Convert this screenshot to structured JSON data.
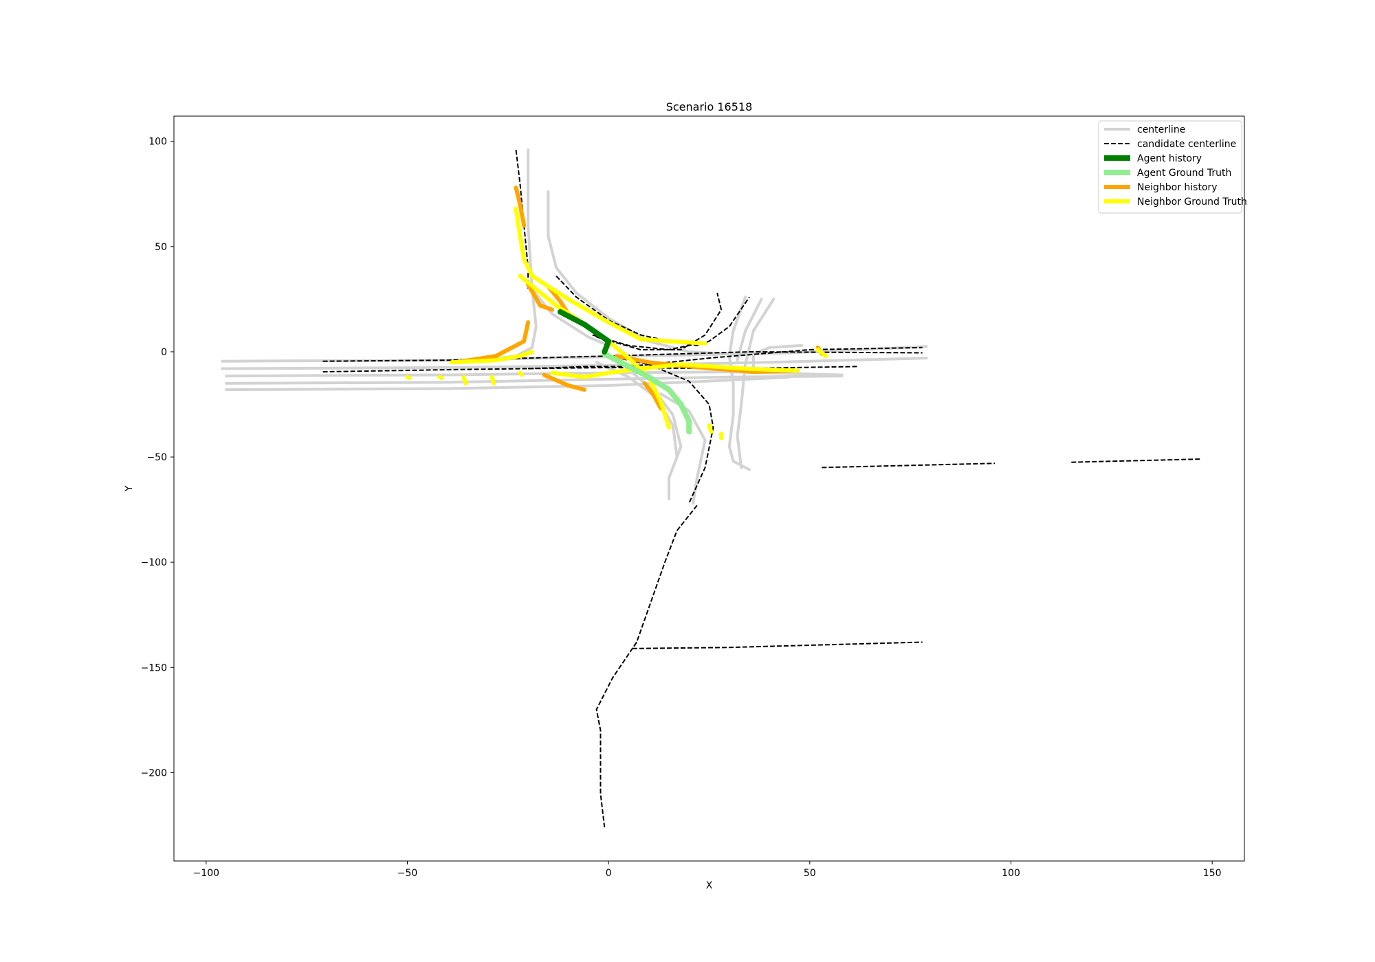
{
  "chart_data": {
    "type": "line",
    "title": "Scenario 16518",
    "xlabel": "X",
    "ylabel": "Y",
    "xlim": [
      -108,
      158
    ],
    "ylim": [
      -242,
      112
    ],
    "xticks": [
      -100,
      -50,
      0,
      50,
      100,
      150
    ],
    "yticks": [
      100,
      50,
      0,
      -50,
      -100,
      -150,
      -200
    ],
    "grid": false,
    "legend_position": "top-right",
    "legend": [
      {
        "label": "centerline",
        "color": "#d3d3d3",
        "style": "solid",
        "width": 4
      },
      {
        "label": "candidate centerline",
        "color": "#000000",
        "style": "dashed",
        "width": 2
      },
      {
        "label": "Agent history",
        "color": "#008000",
        "style": "solid",
        "width": 8
      },
      {
        "label": "Agent Ground Truth",
        "color": "#90ee90",
        "style": "solid",
        "width": 8
      },
      {
        "label": "Neighbor history",
        "color": "#ffa500",
        "style": "solid",
        "width": 6
      },
      {
        "label": "Neighbor Ground Truth",
        "color": "#ffff00",
        "style": "solid",
        "width": 6
      }
    ],
    "series": [
      {
        "kind": "centerline",
        "points": [
          [
            -96,
            -4.5
          ],
          [
            -40,
            -4
          ],
          [
            20,
            -1.5
          ],
          [
            45,
            -0.5
          ],
          [
            79,
            2.5
          ]
        ]
      },
      {
        "kind": "centerline",
        "points": [
          [
            -96,
            -8
          ],
          [
            -40,
            -7.5
          ],
          [
            0,
            -6.5
          ],
          [
            40,
            -5
          ],
          [
            79,
            -3
          ]
        ]
      },
      {
        "kind": "centerline",
        "points": [
          [
            -95,
            -11.5
          ],
          [
            -40,
            -11
          ],
          [
            0,
            -10
          ],
          [
            30,
            -9.5
          ],
          [
            58,
            -11
          ]
        ]
      },
      {
        "kind": "centerline",
        "points": [
          [
            -95,
            -15
          ],
          [
            -40,
            -14.5
          ],
          [
            0,
            -13
          ],
          [
            30,
            -12
          ],
          [
            58,
            -11.5
          ]
        ]
      },
      {
        "kind": "centerline",
        "points": [
          [
            -95,
            -18
          ],
          [
            -40,
            -17.5
          ],
          [
            0,
            -16
          ],
          [
            30,
            -13.5
          ],
          [
            45,
            -12
          ]
        ]
      },
      {
        "kind": "centerline",
        "points": [
          [
            -20,
            96
          ],
          [
            -20,
            60
          ],
          [
            -19,
            30
          ],
          [
            -18,
            12
          ],
          [
            -19,
            2
          ],
          [
            -23,
            -2
          ],
          [
            -36,
            -5
          ]
        ]
      },
      {
        "kind": "centerline",
        "points": [
          [
            -15,
            76
          ],
          [
            -15,
            55
          ],
          [
            -13,
            40
          ],
          [
            -8,
            28
          ],
          [
            0,
            16
          ],
          [
            10,
            5
          ],
          [
            20,
            0
          ],
          [
            30,
            -1
          ]
        ]
      },
      {
        "kind": "centerline",
        "points": [
          [
            -20,
            32
          ],
          [
            -14,
            18
          ],
          [
            -5,
            7
          ],
          [
            0,
            3
          ]
        ]
      },
      {
        "kind": "centerline",
        "points": [
          [
            -3,
            -5
          ],
          [
            5,
            -12
          ],
          [
            12,
            -22
          ],
          [
            16,
            -35
          ],
          [
            17,
            -50
          ]
        ]
      },
      {
        "kind": "centerline",
        "points": [
          [
            6,
            -10
          ],
          [
            12,
            -20
          ],
          [
            16,
            -30
          ],
          [
            18,
            -45
          ],
          [
            15,
            -60
          ],
          [
            15,
            -70
          ]
        ]
      },
      {
        "kind": "centerline",
        "points": [
          [
            13,
            -20
          ],
          [
            20,
            -28
          ],
          [
            24,
            -42
          ],
          [
            22,
            -60
          ],
          [
            21,
            -72
          ]
        ]
      },
      {
        "kind": "centerline",
        "points": [
          [
            30,
            -2
          ],
          [
            31,
            -15
          ],
          [
            31,
            -30
          ],
          [
            30,
            -45
          ],
          [
            31,
            -52
          ],
          [
            35,
            -56
          ]
        ]
      },
      {
        "kind": "centerline",
        "points": [
          [
            34,
            -5
          ],
          [
            33,
            -25
          ],
          [
            32,
            -40
          ],
          [
            33,
            -55
          ]
        ]
      },
      {
        "kind": "centerline",
        "points": [
          [
            30,
            -2
          ],
          [
            31,
            10
          ],
          [
            34,
            26
          ]
        ]
      },
      {
        "kind": "centerline",
        "points": [
          [
            32,
            -4
          ],
          [
            34,
            10
          ],
          [
            38,
            25
          ]
        ]
      },
      {
        "kind": "centerline",
        "points": [
          [
            34,
            -6
          ],
          [
            36,
            10
          ],
          [
            41,
            25
          ]
        ]
      },
      {
        "kind": "centerline",
        "points": [
          [
            36,
            -7
          ],
          [
            36,
            -1
          ],
          [
            40,
            2
          ],
          [
            48,
            3
          ]
        ]
      },
      {
        "kind": "candidate",
        "points": [
          [
            -71,
            -4.5
          ],
          [
            -40,
            -4
          ],
          [
            0,
            -2
          ],
          [
            35,
            0
          ],
          [
            78,
            -0.5
          ]
        ]
      },
      {
        "kind": "candidate",
        "points": [
          [
            -71,
            -9.5
          ],
          [
            -40,
            -8.5
          ],
          [
            0,
            -7.5
          ],
          [
            30,
            -8
          ],
          [
            62,
            -7
          ]
        ]
      },
      {
        "kind": "candidate",
        "points": [
          [
            -23,
            96
          ],
          [
            -22,
            80
          ],
          [
            -21,
            60
          ],
          [
            -20,
            40
          ],
          [
            -20,
            30
          ]
        ]
      },
      {
        "kind": "candidate",
        "points": [
          [
            -13,
            36
          ],
          [
            -8,
            26
          ],
          [
            0,
            15
          ],
          [
            8,
            8
          ],
          [
            15,
            5
          ],
          [
            22,
            3
          ],
          [
            25,
            5
          ]
        ]
      },
      {
        "kind": "candidate",
        "points": [
          [
            -4,
            8
          ],
          [
            5,
            3
          ],
          [
            15,
            1
          ],
          [
            25,
            5
          ],
          [
            30,
            12
          ],
          [
            35,
            26
          ]
        ]
      },
      {
        "kind": "candidate",
        "points": [
          [
            -3,
            7
          ],
          [
            8,
            1
          ],
          [
            18,
            1
          ],
          [
            24,
            8
          ],
          [
            28,
            20
          ],
          [
            27,
            28
          ]
        ]
      },
      {
        "kind": "candidate",
        "points": [
          [
            0,
            -2
          ],
          [
            10,
            -6
          ],
          [
            20,
            -14
          ],
          [
            25,
            -25
          ],
          [
            26,
            -36
          ],
          [
            24,
            -55
          ],
          [
            20,
            -72
          ]
        ]
      },
      {
        "kind": "candidate",
        "points": [
          [
            -20,
            -8
          ],
          [
            -5,
            -7
          ],
          [
            5,
            -7
          ],
          [
            15,
            -5
          ],
          [
            25,
            -3
          ],
          [
            50,
            1
          ],
          [
            78,
            2
          ]
        ]
      },
      {
        "kind": "candidate",
        "points": [
          [
            22,
            -73
          ],
          [
            17,
            -85
          ],
          [
            14,
            -100
          ],
          [
            7,
            -138
          ],
          [
            6,
            -141
          ],
          [
            8,
            -141
          ],
          [
            30,
            -140.5
          ],
          [
            78,
            -138
          ]
        ]
      },
      {
        "kind": "candidate",
        "points": [
          [
            7,
            -138
          ],
          [
            1,
            -155
          ],
          [
            -3,
            -170
          ],
          [
            -2,
            -180
          ],
          [
            -2,
            -210
          ],
          [
            -1,
            -226
          ]
        ]
      },
      {
        "kind": "candidate",
        "points": [
          [
            53,
            -55
          ],
          [
            96,
            -53
          ]
        ]
      },
      {
        "kind": "candidate",
        "points": [
          [
            115,
            -52.5
          ],
          [
            147,
            -51
          ]
        ]
      },
      {
        "kind": "neighbor_history",
        "points": [
          [
            -23,
            78
          ],
          [
            -22,
            70
          ],
          [
            -21,
            60
          ]
        ]
      },
      {
        "kind": "neighbor_history",
        "points": [
          [
            -20,
            32
          ],
          [
            -17,
            22
          ],
          [
            -14,
            20
          ]
        ]
      },
      {
        "kind": "neighbor_history",
        "points": [
          [
            -15,
            31
          ],
          [
            -12,
            24
          ],
          [
            -10,
            18
          ]
        ]
      },
      {
        "kind": "neighbor_history",
        "points": [
          [
            -20,
            14
          ],
          [
            -21,
            5
          ],
          [
            -28,
            -2
          ],
          [
            -38,
            -5
          ]
        ]
      },
      {
        "kind": "neighbor_history",
        "points": [
          [
            -16,
            -11
          ],
          [
            -10,
            -16
          ],
          [
            -6,
            -18
          ]
        ]
      },
      {
        "kind": "neighbor_history",
        "points": [
          [
            9,
            -15
          ],
          [
            11,
            -20
          ],
          [
            13,
            -27
          ]
        ]
      },
      {
        "kind": "neighbor_history",
        "points": [
          [
            2,
            -2
          ],
          [
            10,
            -5
          ],
          [
            20,
            -7
          ],
          [
            36,
            -9.5
          ]
        ]
      },
      {
        "kind": "neighbor_history",
        "points": [
          [
            36,
            -9.5
          ],
          [
            46,
            -9
          ]
        ]
      },
      {
        "kind": "neighbor_history",
        "points": [
          [
            52,
            2
          ],
          [
            53,
            -1
          ]
        ]
      },
      {
        "kind": "neighbor_ground_truth",
        "points": [
          [
            -23,
            68
          ],
          [
            -22,
            55
          ],
          [
            -21,
            44
          ],
          [
            -19,
            36
          ],
          [
            -10,
            25
          ],
          [
            0,
            14
          ],
          [
            8,
            6
          ],
          [
            15,
            5
          ],
          [
            24,
            4
          ]
        ]
      },
      {
        "kind": "neighbor_ground_truth",
        "points": [
          [
            -22,
            36
          ],
          [
            -13,
            22
          ],
          [
            -5,
            12
          ],
          [
            0,
            5
          ],
          [
            5,
            -3
          ],
          [
            10,
            -12
          ],
          [
            13,
            -24
          ],
          [
            15,
            -36
          ]
        ]
      },
      {
        "kind": "neighbor_ground_truth",
        "points": [
          [
            -39,
            -5
          ],
          [
            -28,
            -4
          ],
          [
            -22,
            -2
          ],
          [
            -19,
            0
          ]
        ]
      },
      {
        "kind": "neighbor_ground_truth",
        "points": [
          [
            -14,
            -10
          ],
          [
            -6,
            -12
          ],
          [
            0,
            -10
          ],
          [
            8,
            -8
          ],
          [
            18,
            -6
          ],
          [
            34,
            -8
          ],
          [
            47,
            -9
          ]
        ]
      },
      {
        "kind": "neighbor_ground_truth",
        "points": [
          [
            52,
            1
          ],
          [
            54,
            -2
          ]
        ]
      },
      {
        "kind": "neighbor_ground_truth",
        "points": [
          [
            25,
            -35
          ],
          [
            25.5,
            -38
          ]
        ]
      },
      {
        "kind": "neighbor_ground_truth",
        "points": [
          [
            28,
            -39
          ],
          [
            28,
            -41
          ]
        ]
      },
      {
        "kind": "neighbor_ground_truth",
        "points": [
          [
            -50,
            -12
          ],
          [
            -49.5,
            -12.5
          ]
        ]
      },
      {
        "kind": "neighbor_ground_truth",
        "points": [
          [
            -42,
            -12
          ],
          [
            -41.5,
            -12.5
          ]
        ]
      },
      {
        "kind": "neighbor_ground_truth",
        "points": [
          [
            -36,
            -12
          ],
          [
            -35.5,
            -15
          ]
        ]
      },
      {
        "kind": "neighbor_ground_truth",
        "points": [
          [
            -29,
            -12
          ],
          [
            -28.5,
            -15
          ]
        ]
      },
      {
        "kind": "neighbor_ground_truth",
        "points": [
          [
            -22,
            -10
          ],
          [
            -21.5,
            -11
          ]
        ]
      },
      {
        "kind": "agent_ground_truth",
        "points": [
          [
            -1,
            -1
          ],
          [
            4,
            -6
          ],
          [
            10,
            -12
          ],
          [
            15,
            -18
          ],
          [
            18,
            -25
          ],
          [
            20,
            -33
          ],
          [
            20,
            -38
          ]
        ]
      },
      {
        "kind": "agent_history",
        "points": [
          [
            -12,
            19
          ],
          [
            -6,
            13
          ],
          [
            0,
            5
          ],
          [
            -1,
            0
          ]
        ]
      }
    ]
  }
}
